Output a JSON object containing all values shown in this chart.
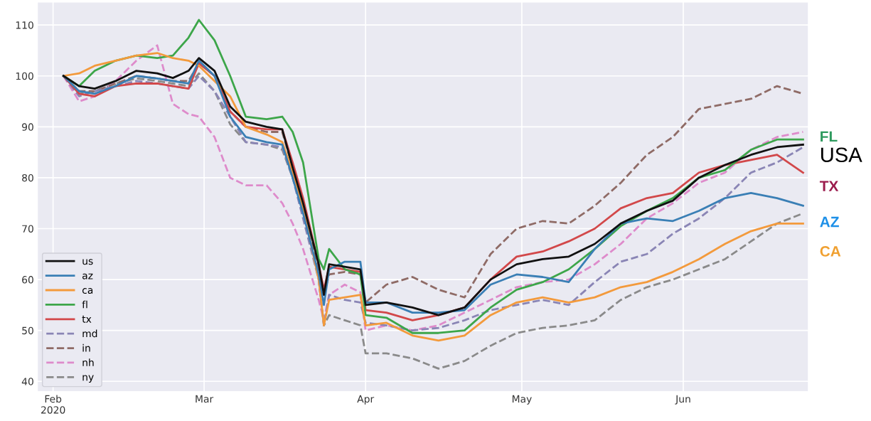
{
  "chart_data": {
    "type": "line",
    "x": [
      "2020-02-03",
      "2020-02-06",
      "2020-02-09",
      "2020-02-13",
      "2020-02-17",
      "2020-02-21",
      "2020-02-24",
      "2020-02-27",
      "2020-02-29",
      "2020-03-03",
      "2020-03-06",
      "2020-03-09",
      "2020-03-13",
      "2020-03-16",
      "2020-03-18",
      "2020-03-20",
      "2020-03-23",
      "2020-03-24",
      "2020-03-25",
      "2020-03-28",
      "2020-03-31",
      "2020-04-01",
      "2020-04-05",
      "2020-04-10",
      "2020-04-15",
      "2020-04-20",
      "2020-04-25",
      "2020-04-30",
      "2020-05-05",
      "2020-05-10",
      "2020-05-15",
      "2020-05-20",
      "2020-05-25",
      "2020-05-30",
      "2020-06-04",
      "2020-06-09",
      "2020-06-14",
      "2020-06-19",
      "2020-06-24"
    ],
    "series": [
      {
        "name": "us",
        "color": "#111111",
        "values": [
          100,
          98,
          97.5,
          99,
          101,
          100.5,
          99.6,
          101,
          103.5,
          101,
          94,
          91,
          90,
          89.5,
          82,
          75,
          63,
          57,
          63,
          62.5,
          62,
          55,
          55.5,
          54.5,
          53,
          54.5,
          60,
          63,
          64,
          64.5,
          67,
          71,
          73.5,
          75.5,
          80,
          82.5,
          84.5,
          86,
          86.5
        ]
      },
      {
        "name": "az",
        "color": "#3a7fb5",
        "values": [
          100,
          97,
          96.5,
          98,
          100,
          99.5,
          99,
          98.5,
          103,
          100,
          92,
          88,
          87,
          86.5,
          80,
          73,
          61,
          55,
          62,
          63.5,
          63.5,
          55.5,
          55.5,
          53.5,
          53.5,
          54,
          59,
          61,
          60.5,
          59.5,
          66,
          71,
          72,
          71.5,
          73.5,
          76,
          77,
          76,
          74.5
        ]
      },
      {
        "name": "ca",
        "color": "#f39a3c",
        "values": [
          100,
          100.5,
          102,
          103,
          104,
          104.5,
          103.5,
          103,
          102,
          99,
          96,
          90,
          88.5,
          87,
          81,
          74,
          60,
          51,
          56,
          56.5,
          57,
          51,
          51.5,
          49,
          48,
          49,
          53,
          55.5,
          56.5,
          55.5,
          56.5,
          58.5,
          59.5,
          61.5,
          64,
          67,
          69.5,
          71,
          71
        ]
      },
      {
        "name": "fl",
        "color": "#3da64a",
        "values": [
          100,
          98,
          101,
          103,
          104,
          103.5,
          104,
          107.5,
          111,
          107,
          100,
          92,
          91.5,
          92,
          89,
          83,
          64,
          62,
          66,
          62,
          61,
          53,
          52.5,
          49.5,
          49.5,
          50,
          54.5,
          58,
          59.5,
          62,
          66,
          70.5,
          73.5,
          76,
          80,
          81.5,
          85.5,
          87.5,
          87.5
        ]
      },
      {
        "name": "tx",
        "color": "#d2484a",
        "values": [
          100,
          96.5,
          96,
          98,
          98.5,
          98.5,
          98,
          97.5,
          102.5,
          100,
          93,
          90,
          89.5,
          89.5,
          83,
          76,
          63,
          58,
          62.5,
          62,
          61.5,
          54,
          53.5,
          52,
          53,
          54.5,
          60,
          64.5,
          65.5,
          67.5,
          70,
          74,
          76,
          77,
          81,
          82.5,
          83.5,
          84.5,
          81
        ]
      },
      {
        "name": "md",
        "color": "#8a85b5",
        "line_style": "dashed",
        "values": [
          100,
          96,
          97,
          98,
          99,
          98.5,
          98,
          97.5,
          100,
          97,
          92,
          87,
          86.5,
          86,
          80,
          72,
          60,
          51,
          57,
          56,
          55.5,
          51.5,
          51,
          50,
          50.5,
          52,
          54,
          55,
          56,
          55,
          59.5,
          63.5,
          65,
          69,
          72,
          76,
          81,
          83,
          86
        ]
      },
      {
        "name": "in",
        "color": "#8f6b66",
        "line_style": "dashed",
        "values": [
          100,
          97,
          97,
          98.5,
          100,
          99.5,
          99,
          99,
          102.5,
          100,
          93,
          90,
          89,
          89,
          82,
          75,
          62,
          57,
          61,
          61.5,
          61,
          55.5,
          59,
          60.5,
          58,
          56.5,
          65,
          70,
          71.5,
          71,
          74.5,
          79,
          84.5,
          88,
          93.5,
          94.5,
          95.5,
          98,
          96.5
        ]
      },
      {
        "name": "nh",
        "color": "#de8bcb",
        "line_style": "dashed",
        "values": [
          100,
          95,
          96,
          99,
          103,
          106,
          94.5,
          92.5,
          92,
          88,
          80,
          78.5,
          78.5,
          75,
          71,
          66,
          56,
          52,
          57,
          59,
          57.5,
          50,
          51,
          50,
          51,
          53.5,
          56,
          58.5,
          59.5,
          60,
          63,
          67,
          72,
          75,
          79,
          81,
          85.5,
          88,
          89
        ]
      },
      {
        "name": "ny",
        "color": "#8a8a8a",
        "line_style": "dashed",
        "values": [
          100,
          96.5,
          97,
          98.5,
          99.5,
          99,
          98.5,
          98,
          100.5,
          97,
          90.5,
          87,
          86.5,
          85.5,
          80,
          74,
          60,
          51,
          53,
          52,
          51,
          45.5,
          45.5,
          44.5,
          42.5,
          44,
          47,
          49.5,
          50.5,
          51,
          52,
          56,
          58.5,
          60,
          62,
          64,
          67.5,
          71,
          73
        ]
      }
    ],
    "xlim": [
      "2020-01-29",
      "2020-06-25"
    ],
    "xticks": [
      {
        "value": "2020-02-01",
        "label": "Feb\n2020"
      },
      {
        "value": "2020-03-01",
        "label": "Mar"
      },
      {
        "value": "2020-04-01",
        "label": "Apr"
      },
      {
        "value": "2020-05-01",
        "label": "May"
      },
      {
        "value": "2020-06-01",
        "label": "Jun"
      }
    ],
    "ylim": [
      38,
      114.5
    ],
    "yticks": [
      40,
      50,
      60,
      70,
      80,
      90,
      100,
      110
    ],
    "grid": true,
    "legend": "bottom left",
    "annotations": [
      "FL",
      "USA",
      "TX",
      "AZ",
      "CA"
    ]
  }
}
